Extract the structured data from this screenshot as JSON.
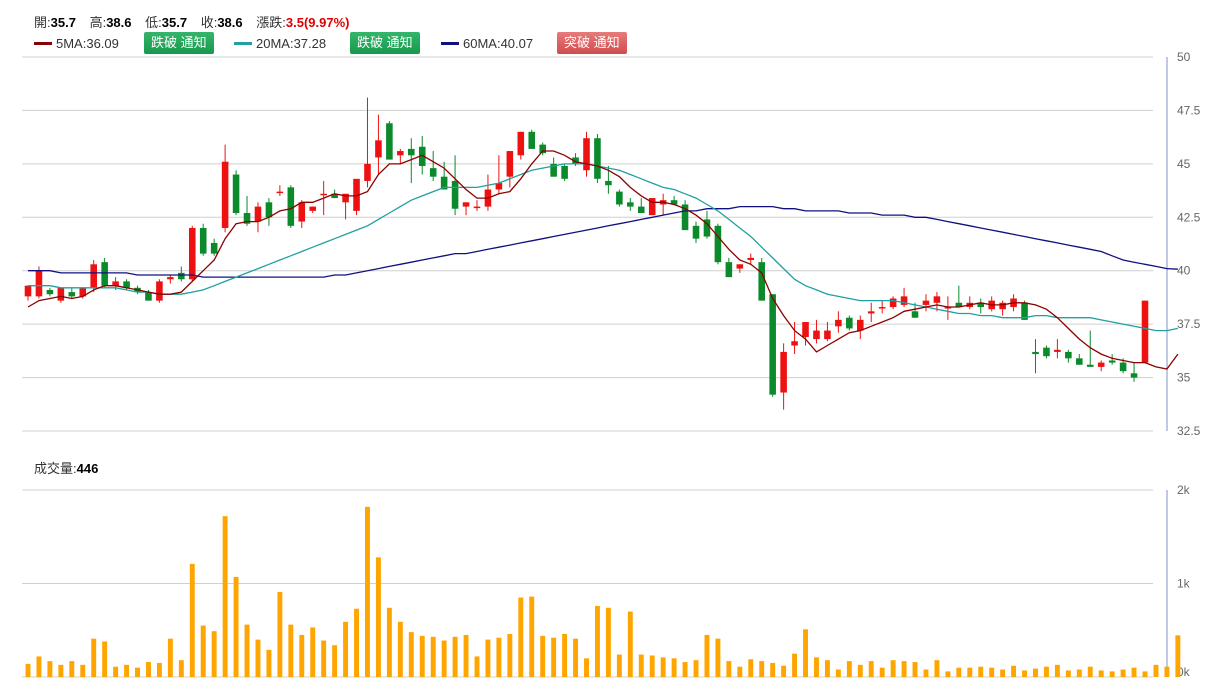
{
  "header": {
    "open_label": "開:",
    "open": "35.7",
    "high_label": "高:",
    "high": "38.6",
    "low_label": "低:",
    "low": "35.7",
    "close_label": "收:",
    "close": "38.6",
    "change_label": "漲跌:",
    "change": "3.5(9.97%)"
  },
  "ma": [
    {
      "label": "5MA:36.09",
      "color": "#8b0000",
      "button": "跌破 通知",
      "button_color": "green"
    },
    {
      "label": "20MA:37.28",
      "color": "#20a0a0",
      "button": "跌破 通知",
      "button_color": "green"
    },
    {
      "label": "60MA:40.07",
      "color": "#101080",
      "button": "突破 通知",
      "button_color": "red"
    }
  ],
  "volume_panel": {
    "label": "成交量:",
    "value": "446"
  },
  "colors": {
    "up": "#ee1111",
    "down": "#0a8a2a",
    "volume": "#ffa500",
    "ma5": "#8b0000",
    "ma20": "#20a0a0",
    "ma60": "#101080"
  },
  "chart_data": [
    {
      "type": "candlestick",
      "y_ticks": [
        "50",
        "47.5",
        "45",
        "42.5",
        "40",
        "37.5",
        "35",
        "32.5"
      ],
      "ylim": [
        32.5,
        50
      ],
      "grid": true,
      "candles": [
        [
          38.8,
          39.3,
          38.6,
          39.3
        ],
        [
          38.8,
          40.2,
          38.7,
          40.0
        ],
        [
          39.1,
          39.2,
          38.8,
          38.9
        ],
        [
          38.6,
          39.2,
          38.5,
          39.2
        ],
        [
          39.0,
          39.2,
          38.7,
          38.8
        ],
        [
          38.8,
          39.2,
          38.7,
          39.2
        ],
        [
          39.2,
          40.5,
          39.0,
          40.3
        ],
        [
          40.4,
          40.6,
          39.2,
          39.3
        ],
        [
          39.3,
          39.7,
          39.1,
          39.5
        ],
        [
          39.5,
          39.6,
          39.1,
          39.2
        ],
        [
          39.2,
          39.3,
          38.9,
          39.0
        ],
        [
          39.0,
          39.1,
          38.6,
          38.6
        ],
        [
          38.6,
          39.6,
          38.5,
          39.5
        ],
        [
          39.6,
          39.8,
          39.4,
          39.7
        ],
        [
          39.9,
          40.2,
          39.5,
          39.6
        ],
        [
          39.6,
          42.1,
          39.5,
          42.0
        ],
        [
          42.0,
          42.2,
          40.7,
          40.8
        ],
        [
          41.3,
          41.5,
          40.7,
          40.8
        ],
        [
          42.0,
          45.9,
          41.8,
          45.1
        ],
        [
          44.5,
          44.7,
          42.6,
          42.7
        ],
        [
          42.7,
          43.5,
          42.1,
          42.2
        ],
        [
          42.3,
          43.2,
          41.8,
          43.0
        ],
        [
          43.2,
          43.4,
          42.1,
          42.5
        ],
        [
          43.7,
          44.0,
          43.5,
          43.7
        ],
        [
          43.9,
          44.0,
          42.0,
          42.1
        ],
        [
          42.3,
          43.3,
          42.0,
          43.2
        ],
        [
          42.8,
          43.0,
          42.7,
          43.0
        ],
        [
          43.6,
          44.2,
          42.6,
          43.6
        ],
        [
          43.6,
          43.8,
          43.4,
          43.4
        ],
        [
          43.2,
          43.6,
          42.4,
          43.6
        ],
        [
          42.8,
          44.2,
          42.6,
          44.3
        ],
        [
          44.2,
          48.1,
          43.9,
          45.0
        ],
        [
          45.3,
          47.3,
          44.5,
          46.1
        ],
        [
          46.9,
          47.0,
          45.2,
          45.2
        ],
        [
          45.4,
          45.7,
          45.0,
          45.6
        ],
        [
          45.7,
          46.2,
          44.1,
          45.4
        ],
        [
          45.8,
          46.3,
          44.5,
          44.9
        ],
        [
          44.8,
          45.6,
          44.2,
          44.4
        ],
        [
          44.4,
          45.1,
          43.9,
          43.8
        ],
        [
          44.2,
          45.4,
          42.6,
          42.9
        ],
        [
          43.0,
          43.2,
          42.6,
          43.2
        ],
        [
          43.0,
          43.3,
          42.8,
          43.0
        ],
        [
          43.0,
          44.5,
          42.8,
          43.8
        ],
        [
          43.8,
          45.4,
          43.6,
          44.1
        ],
        [
          44.4,
          45.6,
          43.9,
          45.6
        ],
        [
          45.4,
          46.5,
          45.2,
          46.5
        ],
        [
          46.5,
          46.6,
          45.7,
          45.7
        ],
        [
          45.9,
          46.0,
          45.4,
          45.5
        ],
        [
          45.0,
          45.3,
          44.4,
          44.4
        ],
        [
          44.9,
          45.0,
          44.2,
          44.3
        ],
        [
          45.3,
          45.5,
          44.9,
          45.0
        ],
        [
          44.7,
          46.5,
          44.4,
          46.2
        ],
        [
          46.2,
          46.4,
          44.1,
          44.3
        ],
        [
          44.2,
          44.9,
          43.6,
          44.0
        ],
        [
          43.7,
          43.8,
          43.0,
          43.1
        ],
        [
          43.2,
          43.4,
          42.8,
          43.0
        ],
        [
          43.0,
          43.4,
          42.7,
          42.7
        ],
        [
          42.6,
          43.4,
          42.6,
          43.4
        ],
        [
          43.1,
          43.6,
          42.6,
          43.3
        ],
        [
          43.3,
          43.5,
          43.1,
          43.1
        ],
        [
          43.1,
          43.3,
          41.9,
          41.9
        ],
        [
          42.1,
          42.3,
          41.3,
          41.5
        ],
        [
          42.4,
          42.8,
          41.5,
          41.6
        ],
        [
          42.1,
          42.2,
          40.3,
          40.4
        ],
        [
          40.4,
          40.6,
          39.7,
          39.7
        ],
        [
          40.1,
          40.3,
          39.9,
          40.3
        ],
        [
          40.5,
          40.8,
          40.3,
          40.6
        ],
        [
          40.4,
          40.6,
          38.6,
          38.6
        ],
        [
          38.9,
          38.9,
          34.1,
          34.2
        ],
        [
          34.3,
          36.6,
          33.5,
          36.2
        ],
        [
          36.5,
          37.6,
          36.1,
          36.7
        ],
        [
          36.9,
          37.5,
          36.5,
          37.6
        ],
        [
          36.8,
          37.7,
          36.6,
          37.2
        ],
        [
          36.8,
          37.6,
          36.7,
          37.2
        ],
        [
          37.4,
          38.1,
          37.1,
          37.7
        ],
        [
          37.8,
          37.9,
          37.2,
          37.3
        ],
        [
          37.2,
          37.9,
          36.8,
          37.7
        ],
        [
          38.0,
          38.5,
          37.6,
          38.1
        ],
        [
          38.3,
          38.6,
          38.0,
          38.3
        ],
        [
          38.3,
          38.8,
          38.2,
          38.7
        ],
        [
          38.4,
          39.2,
          38.3,
          38.8
        ],
        [
          38.1,
          38.5,
          37.8,
          37.8
        ],
        [
          38.4,
          38.9,
          38.1,
          38.6
        ],
        [
          38.5,
          39.0,
          38.1,
          38.8
        ],
        [
          38.3,
          38.8,
          37.7,
          38.3
        ],
        [
          38.5,
          39.3,
          38.3,
          38.3
        ],
        [
          38.3,
          38.8,
          38.2,
          38.5
        ],
        [
          38.5,
          38.7,
          38.0,
          38.3
        ],
        [
          38.2,
          38.8,
          38.1,
          38.6
        ],
        [
          38.2,
          38.6,
          37.9,
          38.5
        ],
        [
          38.3,
          38.9,
          38.1,
          38.7
        ],
        [
          38.5,
          38.6,
          37.7,
          37.7
        ],
        [
          36.2,
          36.8,
          35.2,
          36.1
        ],
        [
          36.4,
          36.5,
          35.9,
          36.0
        ],
        [
          36.2,
          36.8,
          35.9,
          36.3
        ],
        [
          36.2,
          36.3,
          35.7,
          35.9
        ],
        [
          35.9,
          36.1,
          35.6,
          35.6
        ],
        [
          35.6,
          37.2,
          35.5,
          35.5
        ],
        [
          35.5,
          35.8,
          35.3,
          35.7
        ],
        [
          35.8,
          36.1,
          35.6,
          35.7
        ],
        [
          35.7,
          35.9,
          35.2,
          35.3
        ],
        [
          35.2,
          35.7,
          34.8,
          35.0
        ],
        [
          35.7,
          38.6,
          35.7,
          38.6
        ]
      ],
      "ma5": [
        38.3,
        38.6,
        38.7,
        38.8,
        38.7,
        38.8,
        39.1,
        39.3,
        39.3,
        39.2,
        39.1,
        39.0,
        38.9,
        38.9,
        39.0,
        39.5,
        40.0,
        40.5,
        41.5,
        42.2,
        42.3,
        42.3,
        42.5,
        42.8,
        42.9,
        43.2,
        43.2,
        43.4,
        43.6,
        43.5,
        43.5,
        43.7,
        44.5,
        45.0,
        45.0,
        45.2,
        45.4,
        45.1,
        44.8,
        44.3,
        43.8,
        43.4,
        43.4,
        43.6,
        43.7,
        44.3,
        45.0,
        45.6,
        45.6,
        45.4,
        45.1,
        45.0,
        44.9,
        44.7,
        44.4,
        43.9,
        43.5,
        43.2,
        43.2,
        43.1,
        42.9,
        42.6,
        42.2,
        41.6,
        41.0,
        40.5,
        40.3,
        39.9,
        38.7,
        37.9,
        37.2,
        36.8,
        36.2,
        36.5,
        36.8,
        37.1,
        37.2,
        37.4,
        37.6,
        37.8,
        38.1,
        38.2,
        38.3,
        38.4,
        38.3,
        38.3,
        38.4,
        38.5,
        38.4,
        38.4,
        38.5,
        38.5,
        38.4,
        38.2,
        37.8,
        37.3,
        36.8,
        36.4,
        36.1,
        35.9,
        35.8,
        35.7,
        35.7,
        35.5,
        35.4,
        36.1
      ],
      "ma20": [
        39.3,
        39.3,
        39.3,
        39.2,
        39.2,
        39.2,
        39.2,
        39.2,
        39.2,
        39.1,
        39.0,
        39.0,
        38.9,
        38.9,
        38.9,
        39.0,
        39.1,
        39.3,
        39.5,
        39.7,
        39.9,
        40.1,
        40.3,
        40.5,
        40.7,
        40.9,
        41.1,
        41.3,
        41.5,
        41.7,
        41.9,
        42.1,
        42.4,
        42.7,
        43.0,
        43.3,
        43.5,
        43.7,
        43.9,
        43.9,
        43.9,
        43.9,
        44.0,
        44.1,
        44.3,
        44.5,
        44.7,
        44.8,
        44.9,
        45.0,
        45.0,
        45.0,
        44.9,
        44.8,
        44.7,
        44.5,
        44.3,
        44.1,
        43.9,
        43.8,
        43.6,
        43.4,
        43.1,
        42.8,
        42.4,
        42.0,
        41.6,
        41.1,
        40.6,
        40.1,
        39.6,
        39.3,
        39.1,
        38.9,
        38.8,
        38.7,
        38.6,
        38.6,
        38.6,
        38.6,
        38.5,
        38.4,
        38.3,
        38.2,
        38.1,
        38.0,
        38.0,
        37.9,
        37.9,
        37.8,
        37.8,
        37.8,
        37.9,
        37.9,
        37.8,
        37.8,
        37.8,
        37.8,
        37.7,
        37.6,
        37.5,
        37.4,
        37.3,
        37.2,
        37.2,
        37.3
      ],
      "ma60": [
        40.0,
        40.0,
        40.0,
        39.9,
        39.9,
        39.9,
        39.9,
        39.9,
        39.9,
        39.9,
        39.8,
        39.8,
        39.8,
        39.8,
        39.8,
        39.8,
        39.7,
        39.7,
        39.7,
        39.7,
        39.7,
        39.7,
        39.7,
        39.7,
        39.7,
        39.7,
        39.7,
        39.7,
        39.8,
        39.8,
        39.9,
        40.0,
        40.1,
        40.2,
        40.3,
        40.4,
        40.5,
        40.6,
        40.7,
        40.8,
        40.8,
        40.9,
        41.0,
        41.1,
        41.2,
        41.3,
        41.4,
        41.5,
        41.6,
        41.7,
        41.8,
        41.9,
        42.0,
        42.1,
        42.2,
        42.3,
        42.4,
        42.5,
        42.6,
        42.7,
        42.8,
        42.8,
        42.9,
        42.9,
        42.9,
        43.0,
        43.0,
        43.0,
        43.0,
        42.9,
        42.9,
        42.8,
        42.8,
        42.8,
        42.8,
        42.7,
        42.7,
        42.7,
        42.6,
        42.6,
        42.6,
        42.5,
        42.5,
        42.4,
        42.3,
        42.2,
        42.1,
        42.0,
        41.9,
        41.8,
        41.7,
        41.6,
        41.5,
        41.4,
        41.3,
        41.2,
        41.1,
        41.0,
        40.9,
        40.7,
        40.5,
        40.4,
        40.3,
        40.2,
        40.1,
        40.07
      ]
    },
    {
      "type": "bar",
      "title": "成交量",
      "y_ticks": [
        "2k",
        "1k",
        "0k"
      ],
      "ylim": [
        0,
        2000
      ],
      "values": [
        140,
        220,
        170,
        130,
        170,
        130,
        410,
        380,
        110,
        130,
        100,
        160,
        150,
        410,
        180,
        1210,
        550,
        490,
        1720,
        1070,
        560,
        400,
        290,
        910,
        560,
        450,
        530,
        390,
        340,
        590,
        730,
        1820,
        1280,
        740,
        590,
        480,
        440,
        430,
        390,
        430,
        450,
        220,
        400,
        420,
        460,
        850,
        860,
        440,
        420,
        460,
        410,
        200,
        760,
        740,
        240,
        700,
        240,
        230,
        210,
        200,
        160,
        180,
        450,
        410,
        170,
        110,
        190,
        170,
        150,
        120,
        250,
        510,
        210,
        180,
        80,
        170,
        130,
        170,
        100,
        180,
        170,
        160,
        80,
        180,
        60,
        100,
        100,
        110,
        100,
        80,
        120,
        70,
        90,
        110,
        130,
        70,
        80,
        110,
        70,
        60,
        80,
        100,
        60,
        130,
        110,
        446
      ]
    }
  ]
}
